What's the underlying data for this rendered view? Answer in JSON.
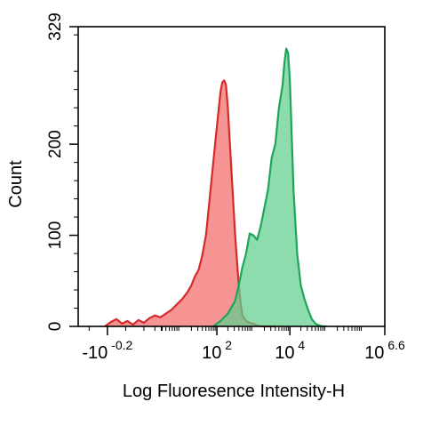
{
  "chart_data": {
    "type": "area",
    "title": "",
    "xlabel": "Log Fluoresence Intensity-H",
    "ylabel": "Count",
    "x_scale": "log",
    "xlim": [
      -1.8,
      6.6
    ],
    "ylim": [
      0,
      329
    ],
    "x_ticks": [
      {
        "pos": -1.0,
        "base": "-10",
        "exp": "-0.2"
      },
      {
        "pos": 2.0,
        "base": "10",
        "exp": "2"
      },
      {
        "pos": 4.0,
        "base": "10",
        "exp": "4"
      },
      {
        "pos": 6.6,
        "base": "10",
        "exp": "6.6"
      }
    ],
    "y_ticks": [
      {
        "value": 0,
        "label": "0"
      },
      {
        "value": 100,
        "label": "100"
      },
      {
        "value": 200,
        "label": "200"
      },
      {
        "value": 329,
        "label": "329"
      }
    ],
    "legend": "none",
    "grid": false,
    "series": [
      {
        "color_fill": "#f26b6b",
        "color_line": "#d42a2a",
        "x": [
          -1.07,
          -0.9,
          -0.75,
          -0.6,
          -0.45,
          -0.3,
          -0.15,
          0.0,
          0.15,
          0.3,
          0.45,
          0.6,
          0.75,
          0.9,
          1.05,
          1.2,
          1.3,
          1.4,
          1.5,
          1.55,
          1.6,
          1.7,
          1.8,
          1.9,
          2.0,
          2.1,
          2.15,
          2.2,
          2.25,
          2.3,
          2.4,
          2.5,
          2.6,
          2.65,
          2.7,
          2.8,
          2.9,
          3.0,
          3.1,
          3.25,
          3.45,
          3.6
        ],
        "y": [
          0,
          5,
          8,
          3,
          6,
          2,
          7,
          4,
          9,
          12,
          10,
          14,
          18,
          24,
          30,
          38,
          45,
          55,
          62,
          70,
          78,
          100,
          140,
          180,
          220,
          258,
          268,
          270,
          265,
          240,
          170,
          100,
          45,
          25,
          12,
          6,
          4,
          3,
          1,
          0,
          0,
          0
        ]
      },
      {
        "color_fill": "#5fcf8f",
        "color_line": "#1fa55a",
        "x": [
          1.9,
          2.1,
          2.3,
          2.5,
          2.6,
          2.7,
          2.8,
          2.9,
          3.0,
          3.1,
          3.2,
          3.3,
          3.4,
          3.5,
          3.6,
          3.7,
          3.8,
          3.85,
          3.9,
          3.95,
          4.0,
          4.1,
          4.2,
          4.3,
          4.4,
          4.5,
          4.6,
          4.7,
          4.8,
          4.9,
          5.0
        ],
        "y": [
          0,
          6,
          14,
          28,
          45,
          65,
          80,
          102,
          100,
          95,
          110,
          130,
          150,
          185,
          200,
          240,
          265,
          290,
          305,
          300,
          270,
          150,
          80,
          45,
          30,
          18,
          8,
          3,
          1,
          0,
          0
        ]
      }
    ]
  }
}
